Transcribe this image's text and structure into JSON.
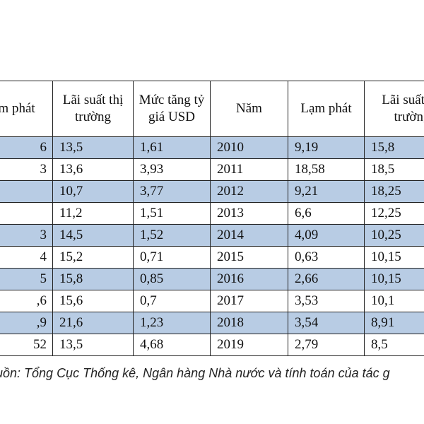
{
  "table": {
    "headers": [
      "ạm phát",
      "Lãi suất thị trường",
      "Mức tăng tỷ giá USD",
      "Năm",
      "Lạm phát",
      "Lãi suất thị trường"
    ],
    "rows": [
      [
        "6",
        "13,5",
        "1,61",
        "2010",
        "9,19",
        "15,8"
      ],
      [
        "3",
        "13,6",
        "3,93",
        "2011",
        "18,58",
        "18,5"
      ],
      [
        "",
        "10,7",
        "3,77",
        "2012",
        "9,21",
        "18,25"
      ],
      [
        "",
        "11,2",
        "1,51",
        "2013",
        "6,6",
        "12,25"
      ],
      [
        "3",
        "14,5",
        "1,52",
        "2014",
        "4,09",
        "10,25"
      ],
      [
        "4",
        "15,2",
        "0,71",
        "2015",
        "0,63",
        "10,15"
      ],
      [
        "5",
        "15,8",
        "0,85",
        "2016",
        "2,66",
        "10,15"
      ],
      [
        ",6",
        "15,6",
        "0,7",
        "2017",
        "3,53",
        "10,1"
      ],
      [
        ",9",
        "21,6",
        "1,23",
        "2018",
        "3,54",
        "8,91"
      ],
      [
        "52",
        "13,5",
        "4,68",
        "2019",
        "2,79",
        "8,5"
      ]
    ]
  },
  "source": "uồn: Tổng Cục Thống kê, Ngân hàng Nhà nước và tính toán của tác g",
  "colors": {
    "row_shade": "#b8cce4",
    "border": "#222222"
  }
}
